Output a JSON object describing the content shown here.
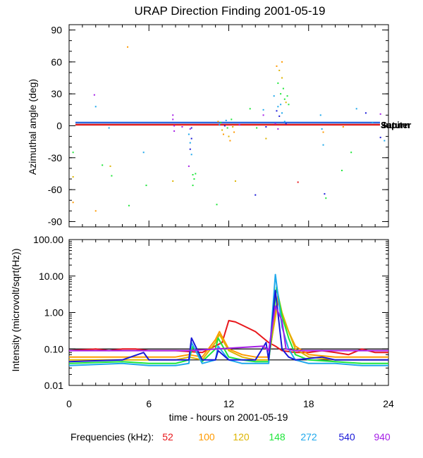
{
  "chart_data": [
    {
      "type": "scatter",
      "title": "URAP Direction Finding  2001-05-19",
      "ylabel": "Azimuthal angle (deg)",
      "xlabel": "",
      "xlim": [
        0,
        24
      ],
      "ylim": [
        -95,
        95
      ],
      "yticks": [
        "90",
        "60",
        "30",
        "0",
        "-30",
        "-60",
        "-90"
      ],
      "ytick_values": [
        90,
        60,
        30,
        0,
        -30,
        -60,
        -90
      ],
      "reference_lines": [
        {
          "name": "Jupiter",
          "y": 2,
          "color": "#2d6be0"
        },
        {
          "name": "Saturn",
          "y": 2,
          "color": "#e01e1e"
        }
      ],
      "reference_label": "Jupiter",
      "reference_label_overlap": "Saturn",
      "series": [
        {
          "name": "52",
          "color": "#e8171b"
        },
        {
          "name": "100",
          "color": "#ff9a00"
        },
        {
          "name": "120",
          "color": "#ddb400"
        },
        {
          "name": "148",
          "color": "#1ee63a"
        },
        {
          "name": "272",
          "color": "#1ea8ec"
        },
        {
          "name": "540",
          "color": "#1818d8"
        },
        {
          "name": "940",
          "color": "#a51ee6"
        }
      ],
      "points": [
        {
          "s": "148",
          "x": 0.3,
          "y": -25
        },
        {
          "s": "120",
          "x": 0.3,
          "y": -48
        },
        {
          "s": "100",
          "x": 0.3,
          "y": -72
        },
        {
          "s": "940",
          "x": 1.9,
          "y": 29
        },
        {
          "s": "272",
          "x": 2.0,
          "y": 18
        },
        {
          "s": "100",
          "x": 2.0,
          "y": -80
        },
        {
          "s": "148",
          "x": 2.5,
          "y": -37
        },
        {
          "s": "272",
          "x": 3.0,
          "y": -2
        },
        {
          "s": "120",
          "x": 3.1,
          "y": -38
        },
        {
          "s": "148",
          "x": 3.2,
          "y": -47
        },
        {
          "s": "100",
          "x": 4.4,
          "y": 74
        },
        {
          "s": "148",
          "x": 4.5,
          "y": -75
        },
        {
          "s": "272",
          "x": 5.6,
          "y": -25
        },
        {
          "s": "148",
          "x": 5.8,
          "y": -56
        },
        {
          "s": "940",
          "x": 7.8,
          "y": 10
        },
        {
          "s": "940",
          "x": 7.8,
          "y": 6
        },
        {
          "s": "940",
          "x": 7.9,
          "y": 0
        },
        {
          "s": "940",
          "x": 7.9,
          "y": -5
        },
        {
          "s": "120",
          "x": 7.8,
          "y": -52
        },
        {
          "s": "940",
          "x": 8.5,
          "y": -1
        },
        {
          "s": "272",
          "x": 9.0,
          "y": -8
        },
        {
          "s": "272",
          "x": 9.1,
          "y": -16
        },
        {
          "s": "540",
          "x": 9.1,
          "y": -22
        },
        {
          "s": "272",
          "x": 9.2,
          "y": -27
        },
        {
          "s": "540",
          "x": 9.2,
          "y": -12
        },
        {
          "s": "148",
          "x": 9.3,
          "y": -46
        },
        {
          "s": "148",
          "x": 9.4,
          "y": -50
        },
        {
          "s": "148",
          "x": 9.3,
          "y": -56
        },
        {
          "s": "148",
          "x": 9.5,
          "y": -45
        },
        {
          "s": "940",
          "x": 9.0,
          "y": -38
        },
        {
          "s": "940",
          "x": 9.1,
          "y": -3
        },
        {
          "s": "540",
          "x": 9.2,
          "y": -2
        },
        {
          "s": "148",
          "x": 11.1,
          "y": -74
        },
        {
          "s": "100",
          "x": 11.2,
          "y": 4
        },
        {
          "s": "272",
          "x": 11.3,
          "y": 1
        },
        {
          "s": "148",
          "x": 11.4,
          "y": 3
        },
        {
          "s": "120",
          "x": 11.5,
          "y": -4
        },
        {
          "s": "100",
          "x": 11.6,
          "y": -8
        },
        {
          "s": "540",
          "x": 11.7,
          "y": 0
        },
        {
          "s": "272",
          "x": 11.8,
          "y": 5
        },
        {
          "s": "148",
          "x": 11.9,
          "y": -2
        },
        {
          "s": "120",
          "x": 12.0,
          "y": -10
        },
        {
          "s": "100",
          "x": 12.1,
          "y": -14
        },
        {
          "s": "148",
          "x": 12.2,
          "y": 6
        },
        {
          "s": "120",
          "x": 12.3,
          "y": -1
        },
        {
          "s": "100",
          "x": 12.4,
          "y": -6
        },
        {
          "s": "120",
          "x": 12.5,
          "y": -52
        },
        {
          "s": "940",
          "x": 12.8,
          "y": 1
        },
        {
          "s": "148",
          "x": 14.1,
          "y": -2
        },
        {
          "s": "540",
          "x": 14.0,
          "y": -65
        },
        {
          "s": "272",
          "x": 14.6,
          "y": 15
        },
        {
          "s": "940",
          "x": 14.6,
          "y": 10
        },
        {
          "s": "540",
          "x": 14.8,
          "y": -1
        },
        {
          "s": "120",
          "x": 14.8,
          "y": -12
        },
        {
          "s": "148",
          "x": 13.6,
          "y": 16
        },
        {
          "s": "940",
          "x": 15.5,
          "y": 2
        },
        {
          "s": "540",
          "x": 15.6,
          "y": 14
        },
        {
          "s": "272",
          "x": 15.7,
          "y": 18
        },
        {
          "s": "540",
          "x": 15.8,
          "y": 9
        },
        {
          "s": "272",
          "x": 15.9,
          "y": 20
        },
        {
          "s": "272",
          "x": 16.0,
          "y": 12
        },
        {
          "s": "148",
          "x": 15.7,
          "y": 40
        },
        {
          "s": "120",
          "x": 15.8,
          "y": 52
        },
        {
          "s": "148",
          "x": 15.9,
          "y": 30
        },
        {
          "s": "120",
          "x": 16.0,
          "y": 45
        },
        {
          "s": "148",
          "x": 16.1,
          "y": 35
        },
        {
          "s": "148",
          "x": 16.2,
          "y": 25
        },
        {
          "s": "100",
          "x": 15.6,
          "y": 56
        },
        {
          "s": "100",
          "x": 16.0,
          "y": 60
        },
        {
          "s": "120",
          "x": 16.3,
          "y": 22
        },
        {
          "s": "148",
          "x": 16.4,
          "y": 28
        },
        {
          "s": "148",
          "x": 16.5,
          "y": 20
        },
        {
          "s": "272",
          "x": 16.2,
          "y": 4
        },
        {
          "s": "540",
          "x": 16.3,
          "y": 2
        },
        {
          "s": "940",
          "x": 15.7,
          "y": -3
        },
        {
          "s": "272",
          "x": 15.4,
          "y": 28
        },
        {
          "s": "52",
          "x": 17.2,
          "y": -53
        },
        {
          "s": "272",
          "x": 18.9,
          "y": 10
        },
        {
          "s": "272",
          "x": 19.0,
          "y": -3
        },
        {
          "s": "272",
          "x": 19.1,
          "y": -18
        },
        {
          "s": "540",
          "x": 19.2,
          "y": -64
        },
        {
          "s": "148",
          "x": 19.3,
          "y": -68
        },
        {
          "s": "100",
          "x": 19.1,
          "y": -6
        },
        {
          "s": "148",
          "x": 20.5,
          "y": -42
        },
        {
          "s": "100",
          "x": 20.6,
          "y": -1
        },
        {
          "s": "148",
          "x": 21.2,
          "y": -25
        },
        {
          "s": "272",
          "x": 21.6,
          "y": 16
        },
        {
          "s": "540",
          "x": 22.3,
          "y": 12
        },
        {
          "s": "272",
          "x": 22.8,
          "y": 3
        },
        {
          "s": "540",
          "x": 23.4,
          "y": -11
        },
        {
          "s": "272",
          "x": 23.7,
          "y": -14
        },
        {
          "s": "940",
          "x": 23.4,
          "y": 11
        }
      ]
    },
    {
      "type": "line",
      "xlabel": "time - hours on 2001-05-19",
      "ylabel": "Intensity (microvolt/sqrt(Hz))",
      "yscale": "log",
      "xlim": [
        0,
        24
      ],
      "ylim": [
        0.01,
        100
      ],
      "xticks": [
        "0",
        "6",
        "12",
        "18",
        "24"
      ],
      "xtick_values": [
        0,
        6,
        12,
        18,
        24
      ],
      "yticks": [
        "100.00",
        "10.00",
        "1.00",
        "0.10",
        "0.01"
      ],
      "ytick_values": [
        100,
        10,
        1,
        0.1,
        0.01
      ],
      "reference_lines": [
        {
          "y": 0.1,
          "color": "#000000"
        },
        {
          "y": 0.05,
          "color": "#000000"
        }
      ],
      "series": [
        {
          "name": "52",
          "color": "#e8171b",
          "x": [
            0,
            2,
            3,
            4,
            5,
            6,
            8,
            10,
            11.5,
            12,
            12.5,
            13,
            14,
            15,
            15.5,
            16,
            17,
            18,
            19,
            20,
            21,
            22,
            23,
            24
          ],
          "values": [
            0.09,
            0.1,
            0.09,
            0.1,
            0.1,
            0.09,
            0.09,
            0.08,
            0.15,
            0.6,
            0.55,
            0.45,
            0.3,
            0.15,
            0.12,
            0.09,
            0.08,
            0.08,
            0.09,
            0.08,
            0.07,
            0.1,
            0.08,
            0.08
          ]
        },
        {
          "name": "100",
          "color": "#ff9a00",
          "x": [
            0,
            4,
            6,
            8,
            9,
            10,
            11,
            11.3,
            12,
            13,
            14,
            15,
            15.7,
            16,
            16.5,
            17,
            18,
            20,
            22,
            24
          ],
          "values": [
            0.06,
            0.06,
            0.06,
            0.06,
            0.07,
            0.06,
            0.18,
            0.3,
            0.1,
            0.07,
            0.06,
            0.06,
            2.0,
            0.8,
            0.3,
            0.12,
            0.07,
            0.06,
            0.06,
            0.06
          ]
        },
        {
          "name": "120",
          "color": "#ddb400",
          "x": [
            0,
            4,
            6,
            8,
            9,
            10,
            11,
            11.3,
            12,
            13,
            14,
            15,
            15.7,
            16,
            16.5,
            17,
            18,
            20,
            22,
            24
          ],
          "values": [
            0.05,
            0.05,
            0.05,
            0.05,
            0.06,
            0.05,
            0.15,
            0.25,
            0.09,
            0.06,
            0.05,
            0.05,
            3.0,
            1.0,
            0.3,
            0.1,
            0.06,
            0.05,
            0.05,
            0.05
          ]
        },
        {
          "name": "148",
          "color": "#1ee63a",
          "x": [
            0,
            4,
            6,
            8,
            9,
            9.3,
            10,
            11,
            11.2,
            12,
            13,
            14,
            15,
            15.6,
            16,
            16.5,
            17,
            18,
            20,
            22,
            24
          ],
          "values": [
            0.04,
            0.045,
            0.04,
            0.04,
            0.05,
            0.12,
            0.045,
            0.1,
            0.2,
            0.06,
            0.05,
            0.045,
            0.045,
            5.0,
            0.8,
            0.2,
            0.07,
            0.05,
            0.045,
            0.04,
            0.04
          ]
        },
        {
          "name": "272",
          "color": "#1ea8ec",
          "x": [
            0,
            4,
            6,
            8,
            9,
            9.2,
            10,
            11,
            11.2,
            12,
            13,
            14,
            15,
            15.5,
            16,
            16.5,
            17,
            18,
            20,
            22,
            24
          ],
          "values": [
            0.035,
            0.04,
            0.035,
            0.035,
            0.04,
            0.15,
            0.04,
            0.05,
            0.12,
            0.05,
            0.04,
            0.04,
            0.04,
            11.0,
            0.4,
            0.1,
            0.05,
            0.04,
            0.04,
            0.035,
            0.035
          ]
        },
        {
          "name": "540",
          "color": "#1818d8",
          "x": [
            0,
            4,
            5.6,
            6,
            8,
            9,
            9.2,
            10,
            11,
            11.2,
            12,
            13,
            14,
            14.8,
            15,
            15.5,
            16,
            16.5,
            17,
            19,
            20,
            22,
            24
          ],
          "values": [
            0.045,
            0.05,
            0.08,
            0.05,
            0.05,
            0.05,
            0.2,
            0.05,
            0.05,
            0.09,
            0.05,
            0.05,
            0.05,
            0.15,
            0.05,
            4.0,
            0.1,
            0.06,
            0.05,
            0.06,
            0.05,
            0.05,
            0.05
          ]
        },
        {
          "name": "940",
          "color": "#a51ee6",
          "x": [
            0,
            1.8,
            2,
            4,
            7.8,
            8,
            9,
            14.6,
            15,
            15.5,
            16,
            16.3,
            17,
            20,
            24
          ],
          "values": [
            0.09,
            0.09,
            0.09,
            0.09,
            0.09,
            0.09,
            0.09,
            0.12,
            0.09,
            1.5,
            0.6,
            0.1,
            0.09,
            0.09,
            0.09
          ]
        }
      ]
    }
  ],
  "legend": {
    "label": "Frequencies (kHz):",
    "items": [
      {
        "name": "52",
        "color": "#e8171b"
      },
      {
        "name": "100",
        "color": "#ff9a00"
      },
      {
        "name": "120",
        "color": "#ddb400"
      },
      {
        "name": "148",
        "color": "#1ee63a"
      },
      {
        "name": "272",
        "color": "#1ea8ec"
      },
      {
        "name": "540",
        "color": "#1818d8"
      },
      {
        "name": "940",
        "color": "#a51ee6"
      }
    ]
  }
}
